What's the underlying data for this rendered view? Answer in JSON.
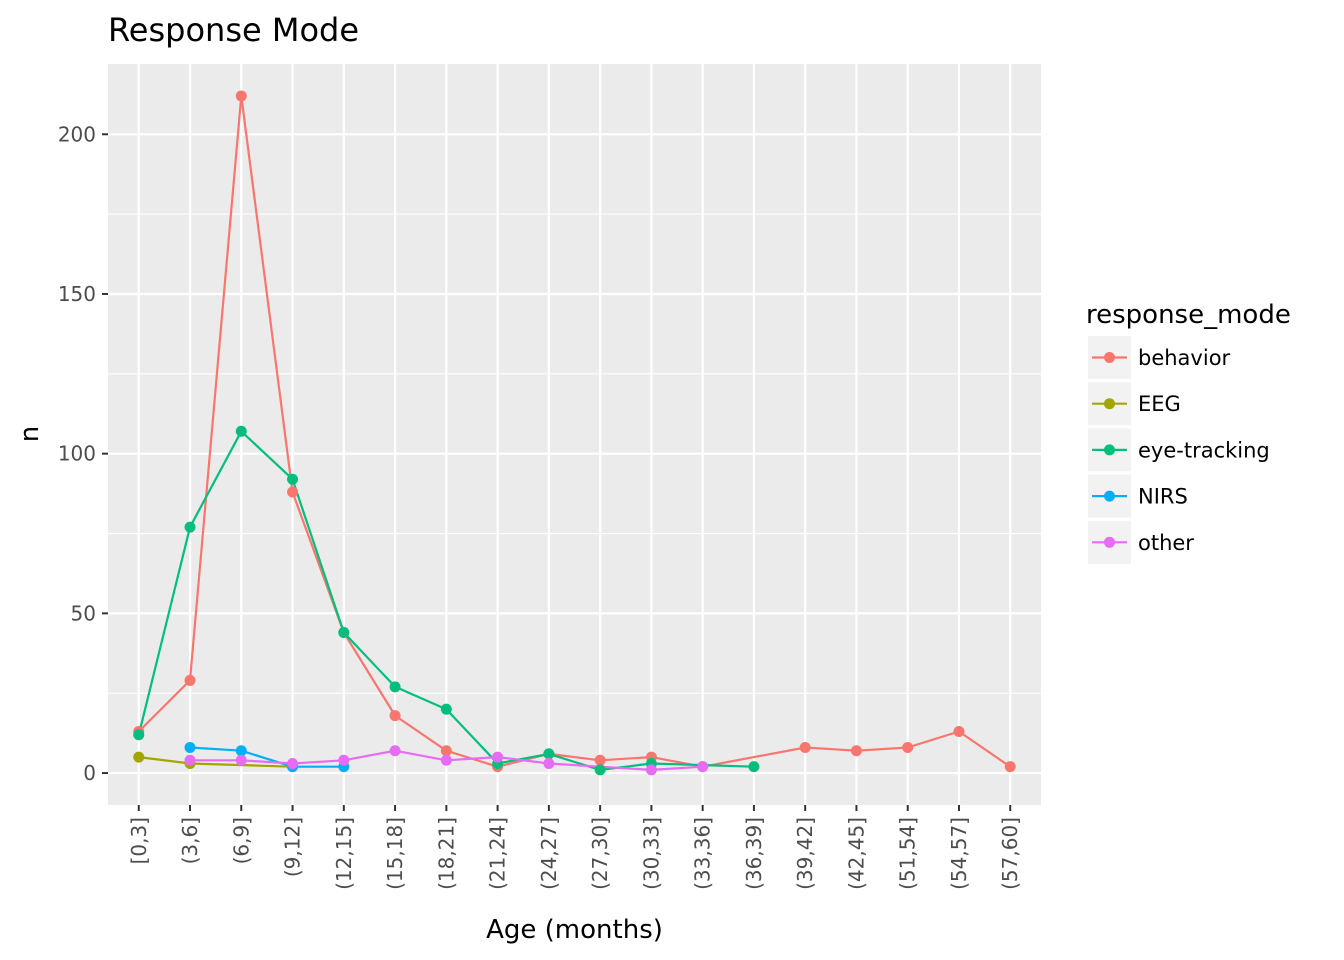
{
  "chart_data": {
    "type": "line",
    "title": "Response Mode",
    "xlabel": "Age (months)",
    "ylabel": "n",
    "ylim": [
      -10,
      222
    ],
    "y_ticks": [
      0,
      50,
      100,
      150,
      200
    ],
    "grid": true,
    "legend_title": "response_mode",
    "legend_position": "right",
    "categories": [
      "[0,3]",
      "(3,6]",
      "(6,9]",
      "(9,12]",
      "(12,15]",
      "(15,18]",
      "(18,21]",
      "(21,24]",
      "(24,27]",
      "(27,30]",
      "(30,33]",
      "(33,36]",
      "(36,39]",
      "(39,42]",
      "(42,45]",
      "(51,54]",
      "(54,57]",
      "(57,60]"
    ],
    "series": [
      {
        "name": "behavior",
        "color": "#F8766D",
        "values": [
          13,
          29,
          212,
          88,
          44,
          18,
          7,
          2,
          6,
          4,
          5,
          2,
          null,
          8,
          7,
          8,
          13,
          2
        ]
      },
      {
        "name": "EEG",
        "color": "#A3A500",
        "values": [
          5,
          3,
          null,
          2,
          null,
          null,
          null,
          null,
          null,
          null,
          null,
          null,
          null,
          null,
          null,
          null,
          null,
          null
        ]
      },
      {
        "name": "eye-tracking",
        "color": "#00BF7D",
        "values": [
          12,
          77,
          107,
          92,
          44,
          27,
          20,
          3,
          6,
          1,
          3,
          null,
          2,
          null,
          null,
          null,
          null,
          null
        ]
      },
      {
        "name": "NIRS",
        "color": "#00B0F6",
        "values": [
          null,
          8,
          7,
          2,
          2,
          null,
          null,
          null,
          null,
          null,
          null,
          null,
          null,
          null,
          null,
          null,
          null,
          null
        ]
      },
      {
        "name": "other",
        "color": "#E76BF3",
        "values": [
          null,
          4,
          4,
          3,
          4,
          7,
          4,
          5,
          3,
          null,
          1,
          2,
          null,
          null,
          null,
          null,
          null,
          null
        ]
      }
    ]
  }
}
